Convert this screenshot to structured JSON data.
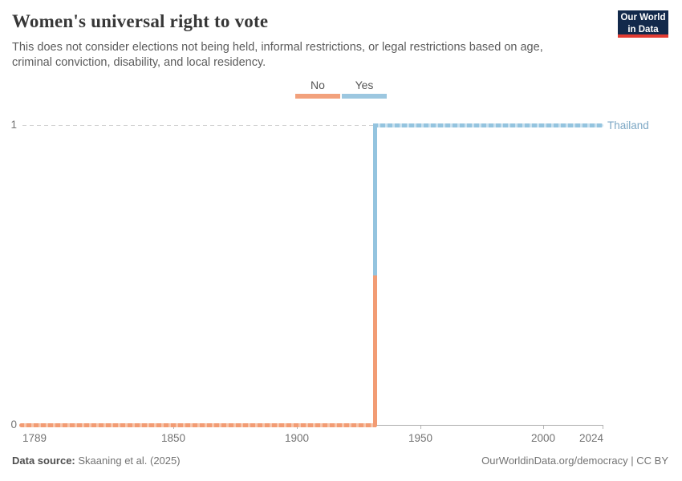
{
  "header": {
    "title": "Women's universal right to vote",
    "subtitle_line1": "This does not consider elections not being held, informal restrictions, or legal restrictions based on age,",
    "subtitle_line2": "criminal conviction, disability, and local residency.",
    "logo": {
      "line1": "Our World",
      "line2": "in Data"
    },
    "logo_colors": {
      "background": "#12294B",
      "underline": "#E23B32",
      "text": "#FFFFFF"
    }
  },
  "legend": {
    "items": [
      {
        "label": "No",
        "color": "#F2A17C"
      },
      {
        "label": "Yes",
        "color": "#9CC7E0"
      }
    ]
  },
  "chart_data": {
    "type": "line",
    "subtype": "step",
    "title": "Women's universal right to vote",
    "entity": "Thailand",
    "series": [
      {
        "name": "Thailand",
        "steps": [
          {
            "from_year": 1789,
            "to_year": 1932,
            "value": 0,
            "category": "No",
            "color": "#F29C74"
          },
          {
            "from_year": 1932,
            "to_year": 2024,
            "value": 1,
            "category": "Yes",
            "color": "#94C4DF"
          }
        ]
      }
    ],
    "transition_year": 1932,
    "x_ticks": [
      "1789",
      "1850",
      "1900",
      "1950",
      "2000",
      "2024"
    ],
    "y_ticks": [
      "0",
      "1"
    ],
    "xlim": [
      1789,
      2024
    ],
    "ylim": [
      0,
      1
    ],
    "grid": "dashed horizontal gridline at y=1, solid axis at y=0",
    "legend_position": "top-center",
    "entity_label": "Thailand",
    "entity_label_color": "#7CA7C4"
  },
  "footer": {
    "datasource_label": "Data source:",
    "datasource_value": "Skaaning et al. (2025)",
    "right_text": "OurWorldinData.org/democracy | CC BY"
  }
}
